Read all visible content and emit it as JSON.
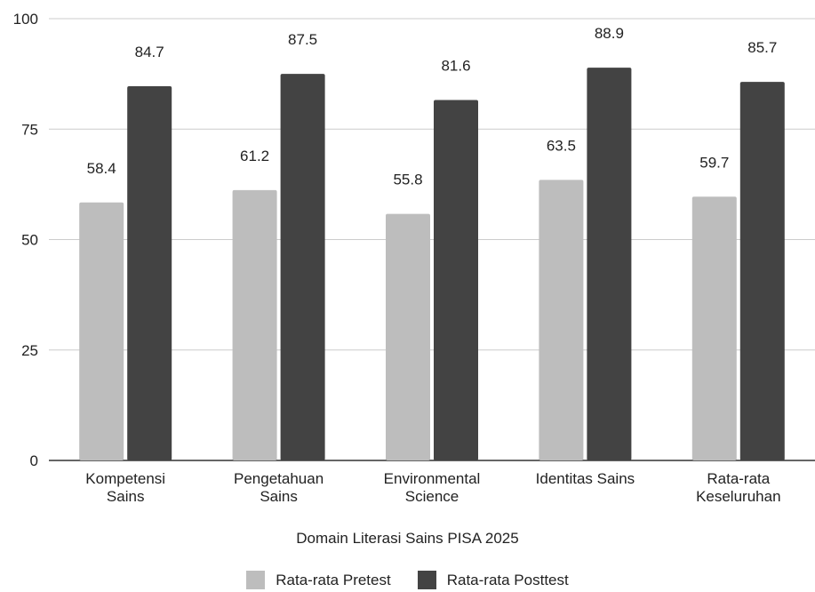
{
  "chart_data": {
    "type": "bar",
    "categories": [
      [
        "Kompetensi",
        "Sains"
      ],
      [
        "Pengetahuan",
        "Sains"
      ],
      [
        "Environmental",
        "Science"
      ],
      [
        "Identitas Sains"
      ],
      [
        "Rata-rata",
        "Keseluruhan"
      ]
    ],
    "series": [
      {
        "name": "Rata-rata Pretest",
        "color": "#bdbdbd",
        "values": [
          58.4,
          61.2,
          55.8,
          63.5,
          59.7
        ]
      },
      {
        "name": "Rata-rata Posttest",
        "color": "#434343",
        "values": [
          84.7,
          87.5,
          81.6,
          88.9,
          85.7
        ]
      }
    ],
    "xlabel": "Domain Literasi Sains PISA 2025",
    "ylabel": "",
    "ylim": [
      0,
      100
    ],
    "yticks": [
      0,
      25,
      50,
      75,
      100
    ],
    "grid": true,
    "legend_position": "bottom"
  }
}
